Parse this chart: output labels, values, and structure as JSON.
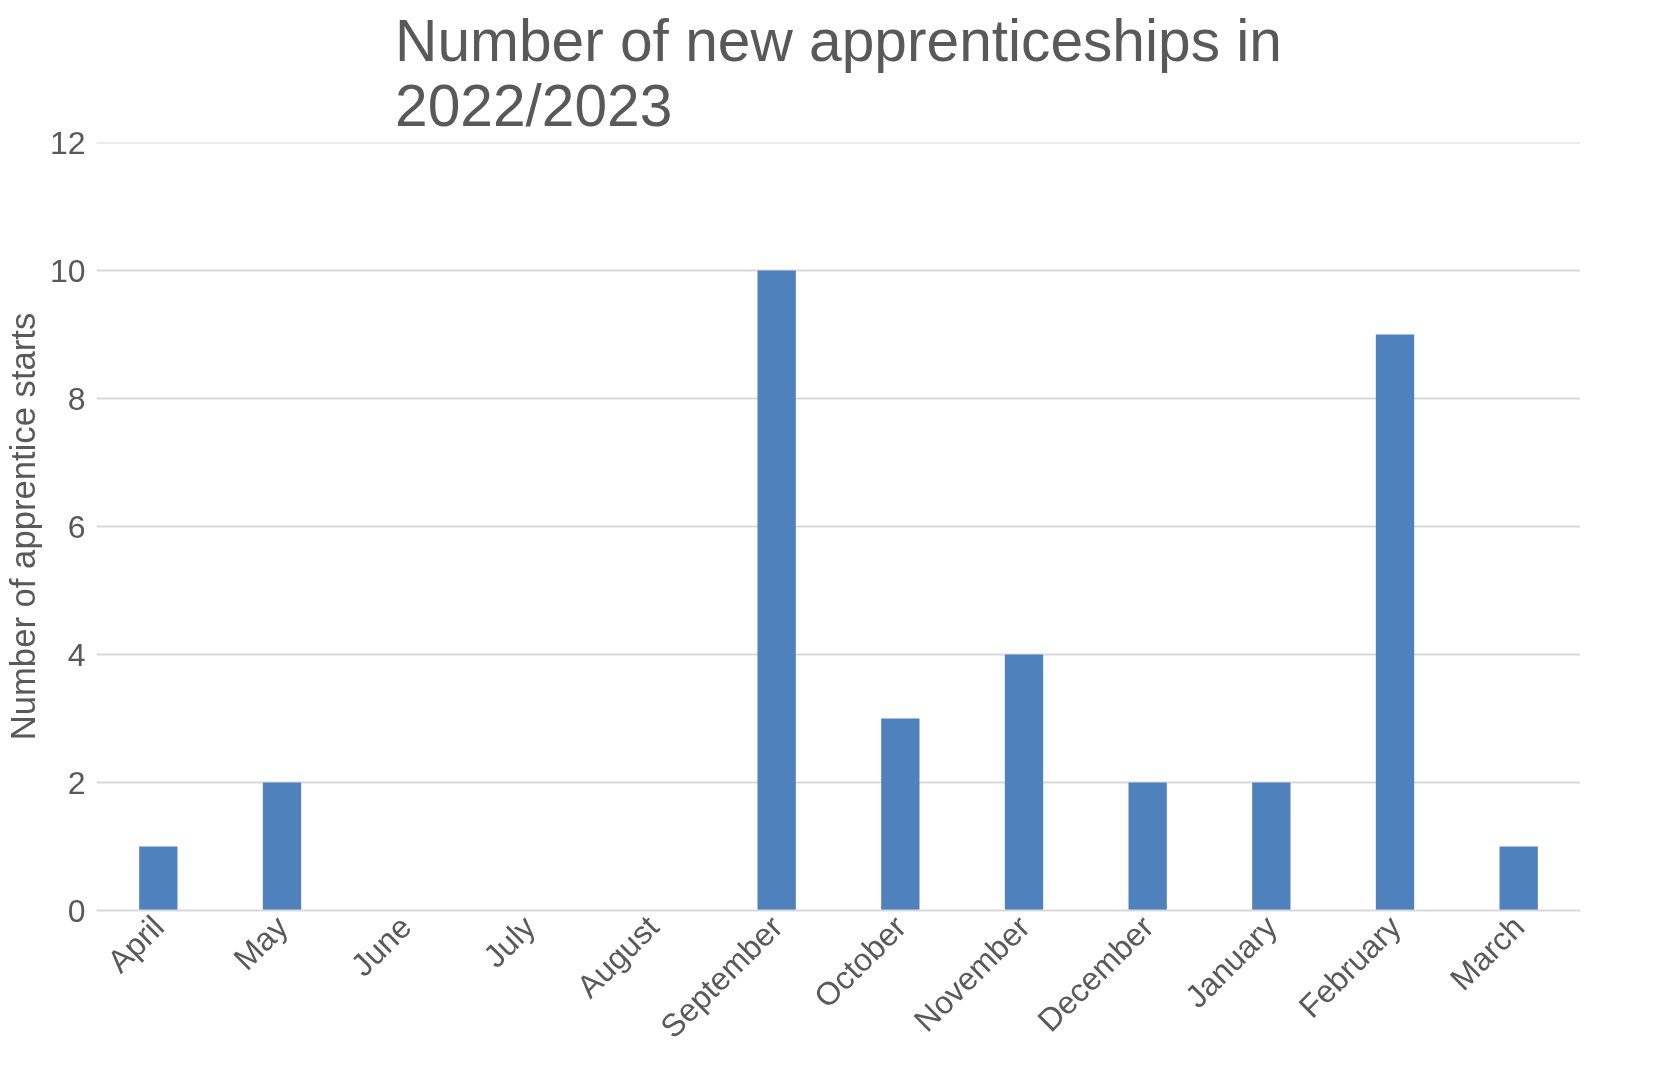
{
  "chart_data": {
    "type": "bar",
    "title": "Number of new apprenticeships in 2022/2023",
    "ylabel": "Number of apprentice starts",
    "categories": [
      "April",
      "May",
      "June",
      "July",
      "August",
      "September",
      "October",
      "November",
      "December",
      "January",
      "February",
      "March"
    ],
    "values": [
      1,
      2,
      0,
      0,
      0,
      10,
      3,
      4,
      2,
      2,
      9,
      1
    ],
    "color": "#4f81bd",
    "ylim": [
      0,
      12
    ],
    "yticks": [
      0,
      2,
      4,
      6,
      8,
      10,
      12
    ],
    "grid": "y"
  }
}
